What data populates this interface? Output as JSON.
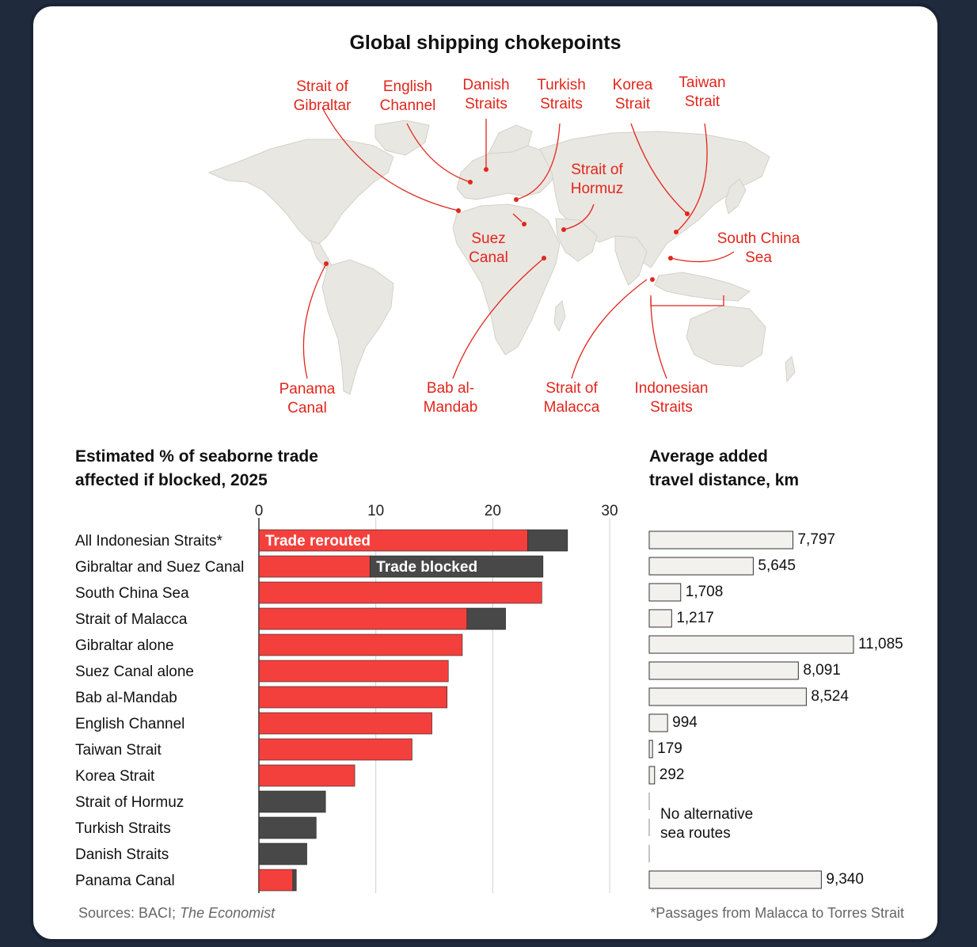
{
  "title": "Global shipping chokepoints",
  "map_labels": [
    {
      "id": "gibraltar",
      "lines": [
        "Strait of",
        "Gibraltar"
      ]
    },
    {
      "id": "english",
      "lines": [
        "English",
        "Channel"
      ]
    },
    {
      "id": "danish",
      "lines": [
        "Danish",
        "Straits"
      ]
    },
    {
      "id": "turkish",
      "lines": [
        "Turkish",
        "Straits"
      ]
    },
    {
      "id": "korea",
      "lines": [
        "Korea",
        "Strait"
      ]
    },
    {
      "id": "taiwan",
      "lines": [
        "Taiwan",
        "Strait"
      ]
    },
    {
      "id": "hormuz",
      "lines": [
        "Strait of",
        "Hormuz"
      ]
    },
    {
      "id": "suez",
      "lines": [
        "Suez",
        "Canal"
      ]
    },
    {
      "id": "scs",
      "lines": [
        "South China",
        "Sea"
      ]
    },
    {
      "id": "panama",
      "lines": [
        "Panama",
        "Canal"
      ]
    },
    {
      "id": "bab",
      "lines": [
        "Bab al-",
        "Mandab"
      ]
    },
    {
      "id": "malacca",
      "lines": [
        "Strait of",
        "Malacca"
      ]
    },
    {
      "id": "indonesian",
      "lines": [
        "Indonesian",
        "Straits"
      ]
    }
  ],
  "left_title": [
    "Estimated % of seaborne trade",
    "affected if blocked, 2025"
  ],
  "right_title": [
    "Average added",
    "travel distance, km"
  ],
  "no_alt_note": [
    "No alternative",
    "sea routes"
  ],
  "footer": {
    "sources_prefix": "Sources: BACI; ",
    "sources_italic": "The Economist",
    "note": "*Passages from Malacca to Torres Strait"
  },
  "colors": {
    "rerouted": "#f4403c",
    "blocked": "#484848",
    "distance_fill": "#f2f1ee",
    "map_land": "#e9e7e1",
    "accent": "#e1261c"
  },
  "chart_data": [
    {
      "type": "bar",
      "orientation": "horizontal",
      "stacked": true,
      "title": "Estimated % of seaborne trade affected if blocked, 2025",
      "xlim": [
        0,
        30
      ],
      "xticks": [
        0,
        10,
        20,
        30
      ],
      "categories": [
        "All Indonesian Straits*",
        "Gibraltar and Suez Canal",
        "South China Sea",
        "Strait of Malacca",
        "Gibraltar alone",
        "Suez Canal alone",
        "Bab al-Mandab",
        "English Channel",
        "Taiwan Strait",
        "Korea Strait",
        "Strait of Hormuz",
        "Turkish Straits",
        "Danish Straits",
        "Panama Canal"
      ],
      "series": [
        {
          "name": "Trade rerouted",
          "values": [
            23,
            9.5,
            24.2,
            17.8,
            17.4,
            16.2,
            16.1,
            14.8,
            13.1,
            8.2,
            0,
            0,
            0,
            2.9
          ]
        },
        {
          "name": "Trade blocked",
          "values": [
            3.4,
            14.8,
            0,
            3.3,
            0,
            0,
            0,
            0,
            0,
            0,
            5.7,
            4.9,
            4.1,
            0.3
          ]
        }
      ],
      "grid": true
    },
    {
      "type": "bar",
      "orientation": "horizontal",
      "title": "Average added travel distance, km",
      "categories": [
        "All Indonesian Straits*",
        "Gibraltar and Suez Canal",
        "South China Sea",
        "Strait of Malacca",
        "Gibraltar alone",
        "Suez Canal alone",
        "Bab al-Mandab",
        "English Channel",
        "Taiwan Strait",
        "Korea Strait",
        "Strait of Hormuz",
        "Turkish Straits",
        "Danish Straits",
        "Panama Canal"
      ],
      "values": [
        7797,
        5645,
        1708,
        1217,
        11085,
        8091,
        8524,
        994,
        179,
        292,
        null,
        null,
        null,
        9340
      ],
      "labels": [
        "7,797",
        "5,645",
        "1,708",
        "1,217",
        "11,085",
        "8,091",
        "8,524",
        "994",
        "179",
        "292",
        "",
        "",
        "",
        "9,340"
      ]
    }
  ]
}
